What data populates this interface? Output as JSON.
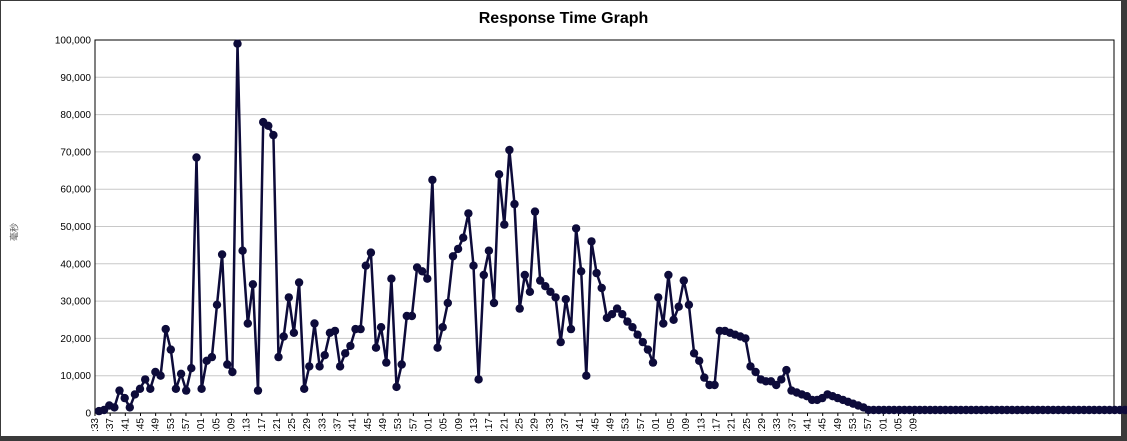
{
  "chart_data": {
    "type": "line",
    "title": "Response Time Graph",
    "ylabel": "毫秒",
    "xlabel": "",
    "ylim": [
      0,
      100000
    ],
    "grid": true,
    "y_ticks": [
      "0",
      "10,000",
      "20,000",
      "30,000",
      "40,000",
      "50,000",
      "60,000",
      "70,000",
      "80,000",
      "90,000",
      "100,000"
    ],
    "x_tick_labels": [
      ":33",
      ":37",
      ":41",
      ":45",
      ":49",
      ":53",
      ":57",
      ":01",
      ":05",
      ":09",
      ":13",
      ":17",
      ":21",
      ":25",
      ":29",
      ":33",
      ":37",
      ":41",
      ":45",
      ":49",
      ":53",
      ":57",
      ":01",
      ":05",
      ":09",
      ":13",
      ":17",
      ":21",
      ":25",
      ":29",
      ":33",
      ":37",
      ":41",
      ":45",
      ":49",
      ":53",
      ":57",
      ":01",
      ":05",
      ":09",
      ":13",
      ":17",
      ":21",
      ":25",
      ":29",
      ":33",
      ":37",
      ":41",
      ":45",
      ":49",
      ":53",
      ":57",
      ":01",
      ":05",
      ":09"
    ],
    "series": [
      {
        "color": "#0d0b3a",
        "values": [
          500,
          800,
          2000,
          1500,
          6000,
          4000,
          1500,
          5000,
          6500,
          9000,
          6500,
          11000,
          10000,
          22500,
          17000,
          6500,
          10500,
          6000,
          12000,
          68500,
          6500,
          14000,
          15000,
          29000,
          42500,
          13000,
          11000,
          99000,
          43500,
          24000,
          34500,
          6000,
          78000,
          77000,
          74500,
          15000,
          20500,
          31000,
          21500,
          35000,
          6500,
          12500,
          24000,
          12500,
          15500,
          21500,
          22000,
          12500,
          16000,
          18000,
          22500,
          22500,
          39500,
          43000,
          17500,
          23000,
          13500,
          36000,
          7000,
          13000,
          26000,
          26000,
          39000,
          38000,
          36000,
          62500,
          17500,
          23000,
          29500,
          42000,
          44000,
          47000,
          53500,
          39500,
          9000,
          37000,
          43500,
          29500,
          64000,
          50500,
          70500,
          56000,
          28000,
          37000,
          32500,
          54000,
          35500,
          34000,
          32500,
          31000,
          19000,
          30500,
          22500,
          49500,
          38000,
          10000,
          46000,
          37500,
          33500,
          25500,
          26500,
          28000,
          26500,
          24500,
          23000,
          21000,
          19000,
          17000,
          13500,
          31000,
          24000,
          37000,
          25000,
          28500,
          35500,
          29000,
          16000,
          14000,
          9500,
          7500,
          7500,
          22000,
          22000,
          21500,
          21000,
          20500,
          20000,
          12500,
          11000,
          9000,
          8500,
          8500,
          7500,
          9000,
          11500,
          6000,
          5500,
          5000,
          4500,
          3500,
          3500,
          4000,
          5000,
          4500,
          4000,
          3500,
          3000,
          2500,
          2000,
          1500,
          800,
          800,
          800,
          800,
          800,
          800,
          800,
          800,
          800,
          800,
          800,
          800,
          800,
          800,
          800,
          800,
          800,
          800,
          800,
          800,
          800,
          800,
          800,
          800,
          800,
          800,
          800,
          800,
          800,
          800,
          800,
          800,
          800,
          800,
          800,
          800,
          800,
          800,
          800,
          800,
          800,
          800,
          800,
          800,
          800,
          800,
          800,
          800,
          800,
          800,
          800,
          800,
          800,
          800,
          800,
          800
        ]
      }
    ]
  }
}
